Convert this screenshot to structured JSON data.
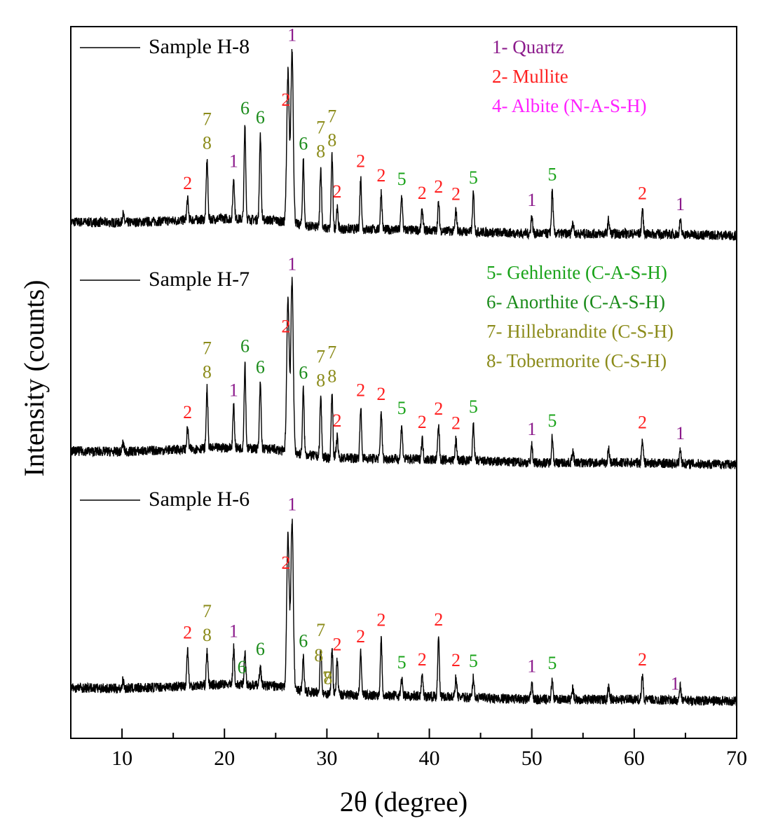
{
  "chart_data": {
    "type": "line",
    "title": "",
    "xlabel": "2θ (degree)",
    "ylabel": "Intensity (counts)",
    "xlim": [
      5,
      70
    ],
    "xticks": [
      10,
      20,
      30,
      40,
      50,
      60,
      70
    ],
    "xtick_labels": [
      "10",
      "20",
      "30",
      "40",
      "50",
      "60",
      "70"
    ],
    "y_ticks_shown": false,
    "series": [
      {
        "name": "Sample H-8",
        "baseline": [
          [
            5,
            0.16
          ],
          [
            10,
            0.15
          ],
          [
            20,
            0.2
          ],
          [
            25,
            0.18
          ],
          [
            26,
            0.15
          ],
          [
            30,
            0.08
          ],
          [
            40,
            0.06
          ],
          [
            50,
            0.02
          ],
          [
            60,
            0.02
          ],
          [
            70,
            0.0
          ]
        ],
        "peaks": [
          [
            10.1,
            0.05
          ],
          [
            16.4,
            0.12
          ],
          [
            18.3,
            0.35
          ],
          [
            20.9,
            0.24
          ],
          [
            22.0,
            0.55
          ],
          [
            23.5,
            0.5
          ],
          [
            26.2,
            0.88
          ],
          [
            26.6,
            1.0
          ],
          [
            27.7,
            0.38
          ],
          [
            29.4,
            0.35
          ],
          [
            30.5,
            0.42
          ],
          [
            31.0,
            0.12
          ],
          [
            33.3,
            0.3
          ],
          [
            35.3,
            0.22
          ],
          [
            37.3,
            0.2
          ],
          [
            39.3,
            0.12
          ],
          [
            40.9,
            0.16
          ],
          [
            42.6,
            0.12
          ],
          [
            44.3,
            0.22
          ],
          [
            50.0,
            0.1
          ],
          [
            52.0,
            0.25
          ],
          [
            54.0,
            0.07
          ],
          [
            57.5,
            0.08
          ],
          [
            60.8,
            0.14
          ],
          [
            64.5,
            0.08
          ]
        ]
      },
      {
        "name": "Sample H-7",
        "baseline": [
          [
            5,
            0.16
          ],
          [
            10,
            0.15
          ],
          [
            20,
            0.2
          ],
          [
            25,
            0.18
          ],
          [
            26,
            0.15
          ],
          [
            30,
            0.08
          ],
          [
            40,
            0.06
          ],
          [
            50,
            0.02
          ],
          [
            60,
            0.02
          ],
          [
            70,
            0.0
          ]
        ],
        "peaks": [
          [
            10.1,
            0.05
          ],
          [
            16.4,
            0.12
          ],
          [
            18.3,
            0.35
          ],
          [
            20.9,
            0.24
          ],
          [
            22.0,
            0.5
          ],
          [
            23.5,
            0.38
          ],
          [
            26.2,
            0.9
          ],
          [
            26.6,
            1.0
          ],
          [
            27.7,
            0.38
          ],
          [
            29.4,
            0.35
          ],
          [
            30.5,
            0.38
          ],
          [
            31.0,
            0.12
          ],
          [
            33.3,
            0.3
          ],
          [
            35.3,
            0.28
          ],
          [
            37.3,
            0.2
          ],
          [
            39.3,
            0.12
          ],
          [
            40.9,
            0.2
          ],
          [
            42.6,
            0.12
          ],
          [
            44.3,
            0.22
          ],
          [
            50.0,
            0.1
          ],
          [
            52.0,
            0.15
          ],
          [
            54.0,
            0.07
          ],
          [
            57.5,
            0.08
          ],
          [
            60.8,
            0.14
          ],
          [
            64.5,
            0.08
          ]
        ]
      },
      {
        "name": "Sample H-6",
        "baseline": [
          [
            5,
            0.16
          ],
          [
            10,
            0.15
          ],
          [
            20,
            0.2
          ],
          [
            25,
            0.18
          ],
          [
            26,
            0.15
          ],
          [
            30,
            0.08
          ],
          [
            40,
            0.06
          ],
          [
            50,
            0.02
          ],
          [
            60,
            0.02
          ],
          [
            70,
            0.0
          ]
        ],
        "peaks": [
          [
            10.1,
            0.05
          ],
          [
            16.4,
            0.22
          ],
          [
            18.3,
            0.2
          ],
          [
            20.9,
            0.22
          ],
          [
            22.0,
            0.2
          ],
          [
            23.5,
            0.12
          ],
          [
            26.2,
            0.92
          ],
          [
            26.6,
            1.0
          ],
          [
            27.7,
            0.2
          ],
          [
            29.4,
            0.28
          ],
          [
            30.5,
            0.28
          ],
          [
            31.0,
            0.2
          ],
          [
            33.3,
            0.25
          ],
          [
            35.3,
            0.35
          ],
          [
            37.3,
            0.1
          ],
          [
            39.3,
            0.12
          ],
          [
            40.9,
            0.36
          ],
          [
            42.6,
            0.12
          ],
          [
            44.3,
            0.12
          ],
          [
            50.0,
            0.1
          ],
          [
            52.0,
            0.12
          ],
          [
            54.0,
            0.07
          ],
          [
            57.5,
            0.08
          ],
          [
            60.8,
            0.14
          ],
          [
            64.5,
            0.08
          ]
        ]
      }
    ],
    "sample_labels": [
      "Sample H-8",
      "Sample H-7",
      "Sample H-6"
    ],
    "legend_top": [
      {
        "text": "1- Quartz",
        "color": "#8b1a8b"
      },
      {
        "text": "2- Mullite",
        "color": "#ff2020"
      },
      {
        "text": "4- Albite (N-A-S-H)",
        "color": "#ff20ff"
      }
    ],
    "legend_middle": [
      {
        "text": "5- Gehlenite (C-A-S-H)",
        "color": "#1aa31a"
      },
      {
        "text": "6- Anorthite (C-A-S-H)",
        "color": "#1a8b1a"
      },
      {
        "text": "7- Hillebrandite (C-S-H)",
        "color": "#8b8b1a"
      },
      {
        "text": "8- Tobermorite (C-S-H)",
        "color": "#8b8b1a"
      }
    ],
    "phase_colors": {
      "1": "#8b1a8b",
      "2": "#ff2020",
      "5": "#1aa31a",
      "6": "#1a8b1a",
      "7": "#8b8b1a",
      "8": "#8b8b1a"
    },
    "annotations": [
      [
        {
          "t": "1",
          "x": 26.6
        },
        {
          "t": "2",
          "x": 26.0
        },
        {
          "t": "2",
          "x": 16.4
        },
        {
          "t": "8",
          "x": 18.3
        },
        {
          "t": "7",
          "x": 18.3
        },
        {
          "t": "1",
          "x": 20.9
        },
        {
          "t": "6",
          "x": 22.0
        },
        {
          "t": "6",
          "x": 23.5
        },
        {
          "t": "6",
          "x": 27.7
        },
        {
          "t": "8",
          "x": 29.4
        },
        {
          "t": "7",
          "x": 29.4
        },
        {
          "t": "8",
          "x": 30.5
        },
        {
          "t": "7",
          "x": 30.5
        },
        {
          "t": "2",
          "x": 31.0
        },
        {
          "t": "2",
          "x": 33.3
        },
        {
          "t": "2",
          "x": 35.3
        },
        {
          "t": "5",
          "x": 37.3
        },
        {
          "t": "2",
          "x": 39.3
        },
        {
          "t": "2",
          "x": 40.9
        },
        {
          "t": "2",
          "x": 42.6
        },
        {
          "t": "5",
          "x": 44.3
        },
        {
          "t": "1",
          "x": 50.0
        },
        {
          "t": "5",
          "x": 52.0
        },
        {
          "t": "2",
          "x": 60.8
        },
        {
          "t": "1",
          "x": 64.5
        }
      ],
      [
        {
          "t": "1",
          "x": 26.6
        },
        {
          "t": "2",
          "x": 26.0
        },
        {
          "t": "2",
          "x": 16.4
        },
        {
          "t": "8",
          "x": 18.3
        },
        {
          "t": "7",
          "x": 18.3
        },
        {
          "t": "1",
          "x": 20.9
        },
        {
          "t": "6",
          "x": 22.0
        },
        {
          "t": "6",
          "x": 23.5
        },
        {
          "t": "6",
          "x": 27.7
        },
        {
          "t": "8",
          "x": 29.4
        },
        {
          "t": "7",
          "x": 29.4
        },
        {
          "t": "8",
          "x": 30.5
        },
        {
          "t": "7",
          "x": 30.5
        },
        {
          "t": "2",
          "x": 31.0
        },
        {
          "t": "2",
          "x": 33.3
        },
        {
          "t": "2",
          "x": 35.3
        },
        {
          "t": "5",
          "x": 37.3
        },
        {
          "t": "2",
          "x": 39.3
        },
        {
          "t": "2",
          "x": 40.9
        },
        {
          "t": "2",
          "x": 42.6
        },
        {
          "t": "5",
          "x": 44.3
        },
        {
          "t": "1",
          "x": 50.0
        },
        {
          "t": "5",
          "x": 52.0
        },
        {
          "t": "2",
          "x": 60.8
        },
        {
          "t": "1",
          "x": 64.5
        }
      ],
      [
        {
          "t": "1",
          "x": 26.6
        },
        {
          "t": "2",
          "x": 26.0
        },
        {
          "t": "2",
          "x": 16.4
        },
        {
          "t": "8",
          "x": 18.3
        },
        {
          "t": "7",
          "x": 18.3
        },
        {
          "t": "1",
          "x": 20.9
        },
        {
          "t": "6",
          "x": 21.7
        },
        {
          "t": "6",
          "x": 23.5
        },
        {
          "t": "6",
          "x": 27.7
        },
        {
          "t": "8",
          "x": 29.2
        },
        {
          "t": "7",
          "x": 29.4
        },
        {
          "t": "8",
          "x": 30.1
        },
        {
          "t": "7",
          "x": 30.0
        },
        {
          "t": "2",
          "x": 31.0
        },
        {
          "t": "2",
          "x": 33.3
        },
        {
          "t": "2",
          "x": 35.3
        },
        {
          "t": "5",
          "x": 37.3
        },
        {
          "t": "2",
          "x": 39.3
        },
        {
          "t": "2",
          "x": 40.9
        },
        {
          "t": "2",
          "x": 42.6
        },
        {
          "t": "5",
          "x": 44.3
        },
        {
          "t": "1",
          "x": 50.0
        },
        {
          "t": "5",
          "x": 52.0
        },
        {
          "t": "2",
          "x": 60.8
        },
        {
          "t": "1",
          "x": 64.0
        }
      ]
    ]
  }
}
